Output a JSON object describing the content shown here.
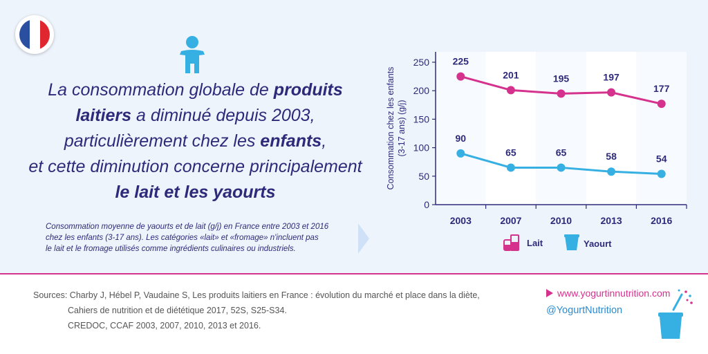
{
  "headline": {
    "p1": "La consommation globale de ",
    "b1": "produits",
    "b2": "laitiers",
    "p2": " a diminué depuis 2003,",
    "p3": "particulièrement chez les ",
    "b3": "enfants",
    "p4": ",",
    "p5": "et cette diminution concerne principalement",
    "b4": "le lait et les yaourts"
  },
  "note": {
    "line1": "Consommation moyenne de yaourts et de lait (g/j) en France entre 2003 et 2016",
    "line2": "chez les enfants (3-17 ans). Les catégories «lait» et «fromage» n'incluent pas",
    "line3": "le lait et le fromage utilisés comme ingrédients culinaires ou industriels."
  },
  "chart_data": {
    "type": "line",
    "ylabel_line1": "Consommation chez les enfants",
    "ylabel_line2": "(3-17 ans) (g/j)",
    "ylim": [
      0,
      250
    ],
    "yticks": [
      0,
      50,
      100,
      150,
      200,
      250
    ],
    "categories": [
      "2003",
      "2007",
      "2010",
      "2013",
      "2016"
    ],
    "series": [
      {
        "name": "Lait",
        "color": "#d5328e",
        "values": [
          225,
          201,
          195,
          197,
          177
        ]
      },
      {
        "name": "Yaourt",
        "color": "#36b0e2",
        "values": [
          90,
          65,
          65,
          58,
          54
        ]
      }
    ],
    "legend_position": "bottom"
  },
  "sources": {
    "l1": "Sources: Charby J, Hébel P, Vaudaine S, Les produits laitiers en France : évolution du marché et place dans la diète,",
    "l2": "Cahiers de nutrition et de diététique 2017, 52S, S25-S34.",
    "l3": "CREDOC, CCAF 2003, 2007, 2010, 2013 et 2016."
  },
  "footer": {
    "website": "www.yogurtinnutrition.com",
    "twitter": "@YogurtNutrition"
  },
  "colors": {
    "primary": "#2e2a7a",
    "lait": "#d5328e",
    "yaourt": "#36b0e2"
  }
}
